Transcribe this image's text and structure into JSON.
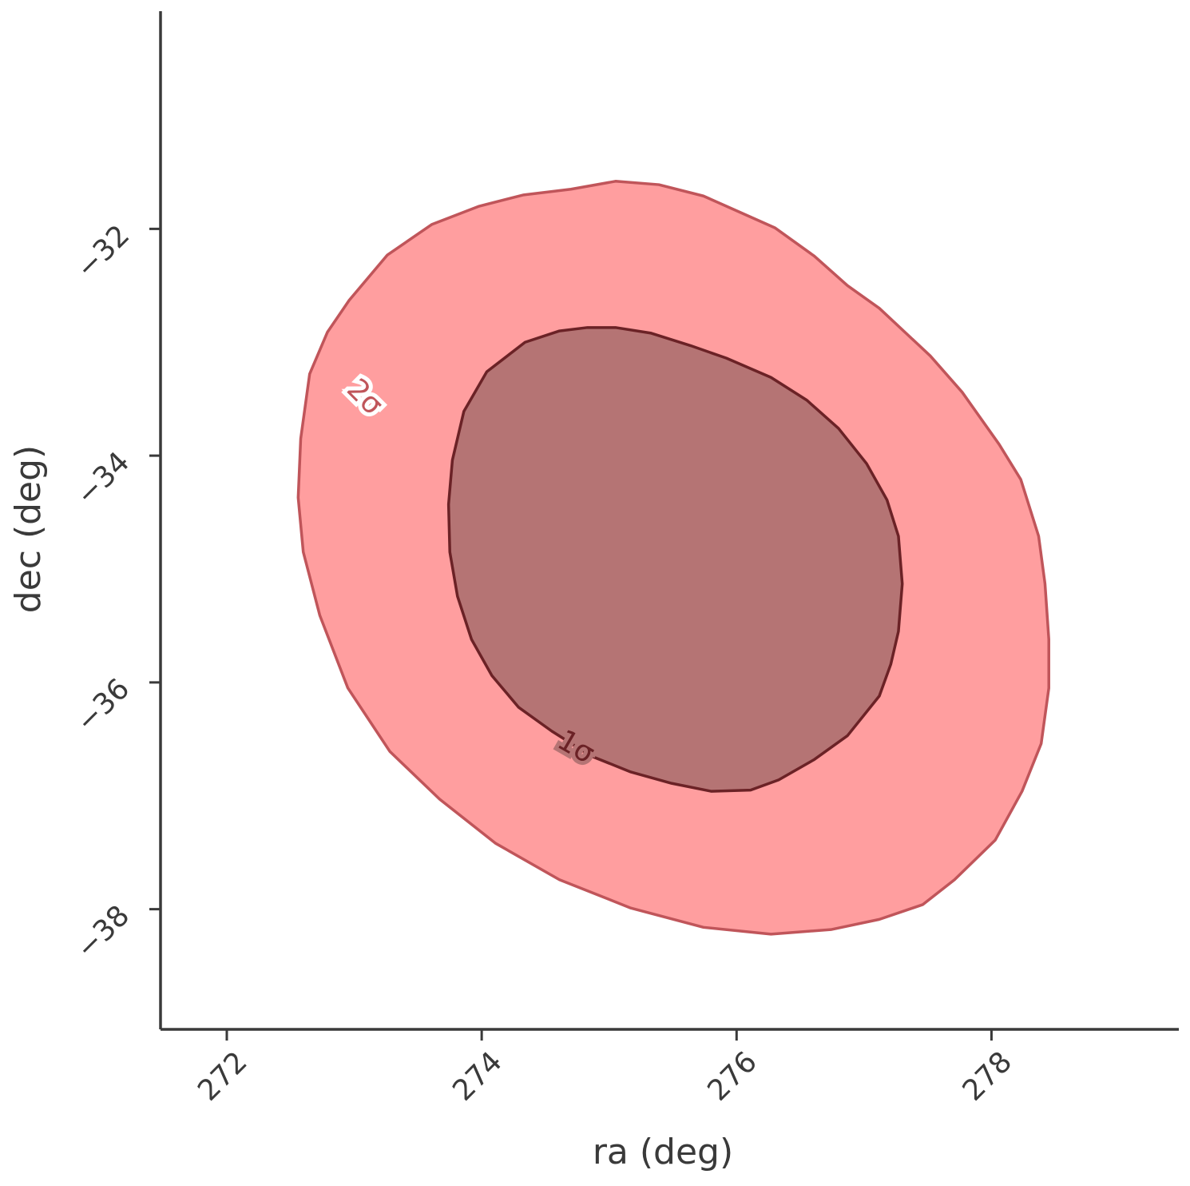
{
  "chart_data": {
    "type": "contour",
    "xlabel": "ra (deg)",
    "ylabel": "dec (deg)",
    "xlim": [
      271.48,
      279.47
    ],
    "ylim": [
      -39.06,
      -30.08
    ],
    "xticks": [
      272,
      274,
      276,
      278
    ],
    "yticks": [
      {
        "value": -32,
        "label": "−32"
      },
      {
        "value": -34,
        "label": "−34"
      },
      {
        "value": -36,
        "label": "−36"
      },
      {
        "value": -38,
        "label": "−38"
      }
    ],
    "series": [
      {
        "name": "2σ",
        "color": "#ff9e9f",
        "edgecolor": "#c0555a",
        "x": [
          275.05,
          274.7,
          274.33,
          273.98,
          273.61,
          273.26,
          272.96,
          272.79,
          272.65,
          272.58,
          272.56,
          272.6,
          272.73,
          272.95,
          273.28,
          273.67,
          274.11,
          274.61,
          275.17,
          275.74,
          276.27,
          276.74,
          277.12,
          277.46,
          277.71,
          278.03,
          278.24,
          278.39,
          278.45,
          278.45,
          278.42,
          278.37,
          278.23,
          278.06,
          277.77,
          277.52,
          277.12,
          276.87,
          276.61,
          276.3,
          276.02,
          275.74,
          275.39
        ],
        "y": [
          -31.58,
          -31.65,
          -31.7,
          -31.8,
          -31.96,
          -32.23,
          -32.63,
          -32.91,
          -33.28,
          -33.85,
          -34.37,
          -34.85,
          -35.41,
          -36.05,
          -36.61,
          -37.03,
          -37.42,
          -37.74,
          -37.99,
          -38.16,
          -38.22,
          -38.18,
          -38.09,
          -37.96,
          -37.74,
          -37.39,
          -36.96,
          -36.54,
          -36.05,
          -35.62,
          -35.13,
          -34.71,
          -34.21,
          -33.9,
          -33.44,
          -33.12,
          -32.7,
          -32.5,
          -32.24,
          -31.99,
          -31.85,
          -31.71,
          -31.61
        ]
      },
      {
        "name": "1σ",
        "color": "#b57474",
        "edgecolor": "#6b2226",
        "x": [
          274.83,
          275.05,
          275.33,
          275.64,
          275.92,
          276.27,
          276.55,
          276.8,
          277.02,
          277.18,
          277.27,
          277.3,
          277.27,
          277.21,
          277.12,
          276.87,
          276.61,
          276.33,
          276.11,
          275.8,
          275.49,
          275.17,
          274.86,
          274.55,
          274.29,
          274.08,
          273.92,
          273.81,
          273.75,
          273.74,
          273.77,
          273.86,
          274.04,
          274.34,
          274.61
        ],
        "y": [
          -32.87,
          -32.87,
          -32.92,
          -33.03,
          -33.14,
          -33.31,
          -33.51,
          -33.76,
          -34.07,
          -34.39,
          -34.71,
          -35.13,
          -35.55,
          -35.84,
          -36.12,
          -36.47,
          -36.68,
          -36.86,
          -36.95,
          -36.96,
          -36.89,
          -36.79,
          -36.65,
          -36.43,
          -36.22,
          -35.94,
          -35.62,
          -35.24,
          -34.85,
          -34.43,
          -34.04,
          -33.61,
          -33.26,
          -33.0,
          -32.9
        ]
      }
    ]
  }
}
